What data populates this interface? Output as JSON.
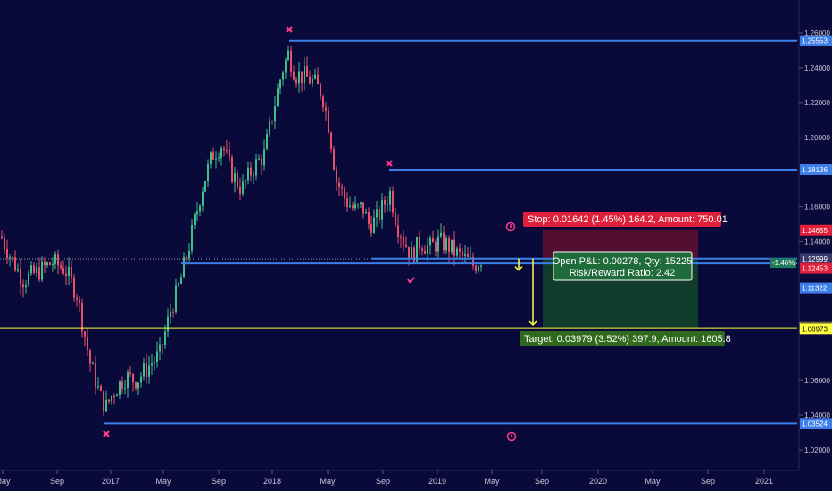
{
  "chart_data": {
    "type": "candlestick",
    "title": "",
    "y_axis": {
      "ticks": [
        "1.26000",
        "1.24000",
        "1.22000",
        "1.20000",
        "1.16000",
        "1.14000",
        "1.06000",
        "1.04000",
        "1.02000"
      ],
      "tick_values": [
        1.26,
        1.24,
        1.22,
        1.2,
        1.16,
        1.14,
        1.06,
        1.04,
        1.02
      ],
      "ylim": [
        1.005,
        1.27
      ]
    },
    "x_axis": {
      "ticks": [
        "May",
        "Sep",
        "2017",
        "May",
        "Sep",
        "2018",
        "May",
        "Sep",
        "2019",
        "May",
        "Sep",
        "2020",
        "May",
        "Sep",
        "2021"
      ]
    },
    "colors": {
      "background": "#0a0a3a",
      "up_candle": "#3fbf8a",
      "down_candle": "#e8506a",
      "level_line": "#3d7fe8",
      "price_line": "#ffff40",
      "stop_zone": "#5a1030",
      "target_zone": "#113f2a"
    },
    "horizontal_levels": [
      {
        "price": 1.25553,
        "label": "1.25553"
      },
      {
        "price": 1.18136,
        "label": "1.18136"
      },
      {
        "price": 1.13013,
        "label": "1.13013"
      },
      {
        "price": 1.12735,
        "label": "1.12735"
      },
      {
        "price": 1.03524,
        "label": "1.03524"
      }
    ],
    "price_line": {
      "price": 1.09034,
      "label": "1.09034"
    },
    "price_tags": [
      {
        "price": 1.14655,
        "label": "1.14655",
        "color": "#e0203a"
      },
      {
        "price": 1.12999,
        "label": "1.12999",
        "color": "#3a3a6a"
      },
      {
        "price": 1.12453,
        "label": "1.12453",
        "color": "#e0203a"
      },
      {
        "price": 1.11322,
        "label": "1.11322",
        "color": "#3d7fe8"
      },
      {
        "price": 1.08973,
        "label": "1.08973",
        "color": "#ffff40"
      }
    ],
    "small_tag": "-1.46%",
    "markers": [
      {
        "symbol": "x",
        "date_index": 2,
        "price": 1.03524
      },
      {
        "symbol": "x",
        "date_index": 35,
        "price": 1.25553
      },
      {
        "symbol": "x",
        "date_index": 53,
        "price": 1.18136
      },
      {
        "symbol": "check",
        "date_index": 57,
        "price": 1.125
      }
    ],
    "position": {
      "stop_text": "Stop: 0.01642 (1.45%) 164.2, Amount: 750.01",
      "target_text": "Target: 0.03979 (3.52%) 397.9, Amount: 1605.8",
      "open_pnl_text": "Open P&L: 0.00278, Qty: 15225",
      "risk_reward_text": "Risk/Reward Ratio: 2.42",
      "entry": 1.13013,
      "stop": 1.14655,
      "target": 1.09034
    }
  }
}
